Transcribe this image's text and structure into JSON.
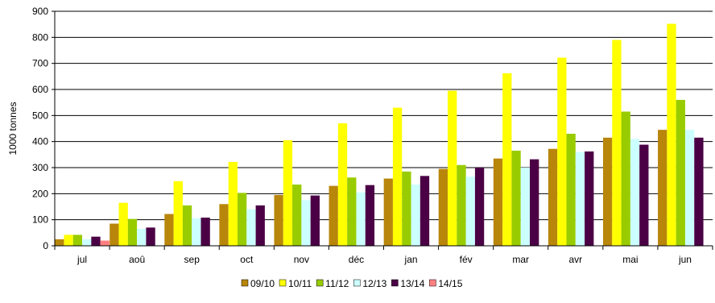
{
  "chart_data": {
    "type": "bar",
    "categories": [
      "jul",
      "aoû",
      "sep",
      "oct",
      "nov",
      "déc",
      "jan",
      "fév",
      "mar",
      "avr",
      "mai",
      "jun"
    ],
    "series": [
      {
        "name": "09/10",
        "color": "#B8860B",
        "values": [
          25,
          85,
          122,
          160,
          195,
          230,
          258,
          295,
          335,
          372,
          415,
          445
        ]
      },
      {
        "name": "10/11",
        "color": "#FFFF00",
        "values": [
          42,
          165,
          248,
          322,
          405,
          470,
          530,
          595,
          662,
          722,
          790,
          852
        ]
      },
      {
        "name": "11/12",
        "color": "#99CC00",
        "values": [
          42,
          103,
          155,
          203,
          235,
          262,
          285,
          310,
          365,
          430,
          515,
          560
        ]
      },
      {
        "name": "12/13",
        "color": "#CCFFFF",
        "values": [
          25,
          65,
          105,
          140,
          175,
          205,
          235,
          265,
          300,
          360,
          410,
          445
        ]
      },
      {
        "name": "13/14",
        "color": "#4B0045",
        "values": [
          35,
          70,
          108,
          155,
          193,
          233,
          268,
          300,
          332,
          362,
          388,
          415
        ]
      },
      {
        "name": "14/15",
        "color": "#FF8080",
        "values": [
          20,
          null,
          null,
          null,
          null,
          null,
          null,
          null,
          null,
          null,
          null,
          null
        ]
      }
    ],
    "ylabel": "1000 tonnes",
    "ylim": [
      0,
      900
    ],
    "yticks": [
      "0",
      "100",
      "200",
      "300",
      "400",
      "500",
      "600",
      "700",
      "800",
      "900"
    ],
    "grid": true,
    "legend": "bottom"
  }
}
